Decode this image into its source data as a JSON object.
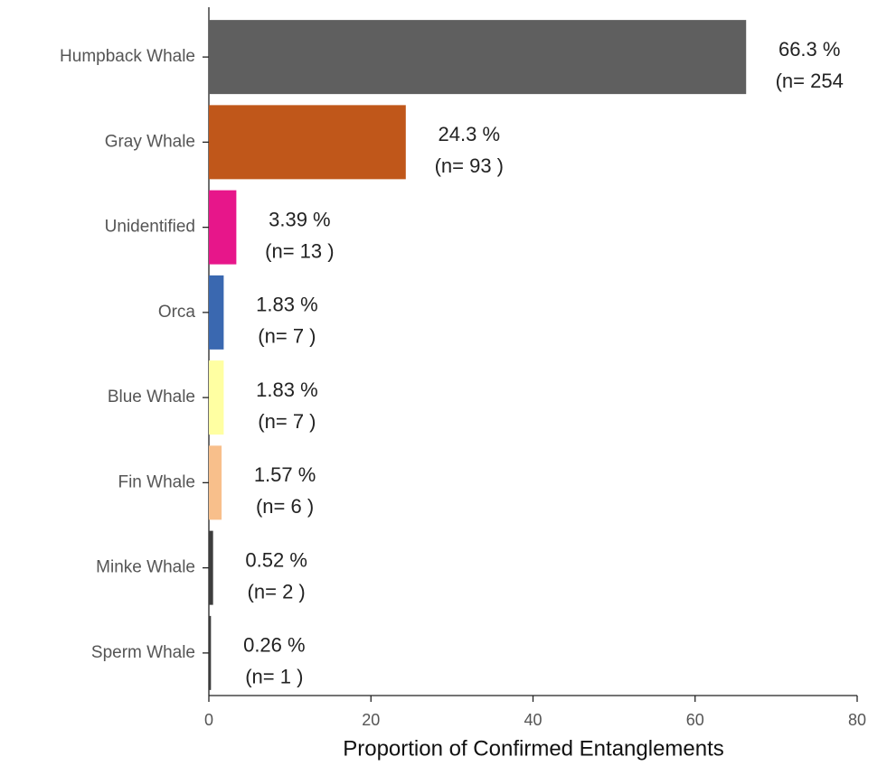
{
  "chart_data": {
    "type": "barh",
    "xlabel": "Proportion of Confirmed Entanglements",
    "categories": [
      "Humpback Whale",
      "Gray Whale",
      "Unidentified",
      "Orca",
      "Blue Whale",
      "Fin Whale",
      "Minke Whale",
      "Sperm Whale"
    ],
    "values": [
      66.3,
      24.3,
      3.39,
      1.83,
      1.83,
      1.57,
      0.52,
      0.26
    ],
    "value_labels": [
      "66.3 %",
      "24.3 %",
      "3.39 %",
      "1.83 %",
      "1.83 %",
      "1.57 %",
      "0.52 %",
      "0.26 %"
    ],
    "n_labels": [
      "(n= 254",
      "(n= 93 )",
      "(n= 13 )",
      "(n= 7 )",
      "(n= 7 )",
      "(n= 6 )",
      "(n= 2 )",
      "(n= 1 )"
    ],
    "colors": [
      "#5f5f5f",
      "#c0571a",
      "#e7168a",
      "#3a68b0",
      "#ffffa2",
      "#f8bf8b",
      "#3d3d3d",
      "#3d3d3d"
    ],
    "xlim": [
      0,
      80
    ],
    "xticks": [
      0,
      20,
      40,
      60,
      80
    ]
  }
}
